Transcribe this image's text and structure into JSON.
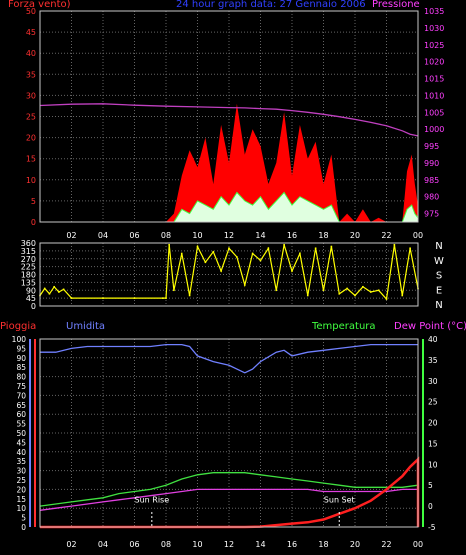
{
  "header": {
    "left_label": "Forza vento)",
    "title": "24 hour graph data:  27 Gennaio 2006",
    "right_label": "Pressione"
  },
  "lower_header": {
    "rain_label": "Pioggia",
    "humidity_label": "Umidita",
    "temp_label": "Temperatura",
    "dew_label": "Dew Point (°C)"
  },
  "annotations": {
    "sun_rise": "Sun Rise",
    "sun_set": "Sun Set"
  },
  "colors": {
    "wind_gust": "#ff0000",
    "wind_avg": "#40ff40",
    "wind_extra": "#e0ffe0",
    "pressure": "#c040c0",
    "direction": "#ffff00",
    "humidity": "#7080ff",
    "temperature": "#40e040",
    "dew_point": "#e040e0",
    "rain": "#ff2020",
    "grid": "#646464",
    "axis_wind": "#ff3030",
    "axis_pressure": "#ff40ff",
    "axis_direction": "#ffffff",
    "axis_rain": "#ff3030",
    "axis_humidity": "#7080ff",
    "axis_temp": "#40ff40"
  },
  "chart_data": [
    {
      "type": "line",
      "title": "24 hour graph data:  27 Gennaio 2006",
      "x_ticks": [
        "02",
        "04",
        "06",
        "08",
        "10",
        "12",
        "14",
        "16",
        "18",
        "20",
        "22",
        "00"
      ],
      "y_left": {
        "label": "Forza vento)",
        "ticks": [
          0,
          5,
          10,
          15,
          20,
          25,
          30,
          35,
          40,
          45,
          50
        ],
        "range": [
          0,
          50
        ]
      },
      "y_right": {
        "label": "Pressione",
        "ticks": [
          975,
          980,
          985,
          990,
          995,
          1000,
          1005,
          1010,
          1015,
          1020,
          1025,
          1030,
          1035
        ],
        "range": [
          972.5,
          1035
        ]
      },
      "grid": true,
      "pressure": {
        "x": [
          0,
          2,
          4,
          6,
          8,
          10,
          12,
          13,
          14,
          15,
          16,
          17,
          18,
          19,
          20,
          21,
          22,
          23,
          23.5,
          24
        ],
        "y": [
          1007,
          1007.4,
          1007.5,
          1007.1,
          1006.8,
          1006.6,
          1006.4,
          1006.3,
          1006.1,
          1005.9,
          1005.5,
          1005,
          1004.4,
          1003.7,
          1002.9,
          1002,
          1001,
          999.5,
          998.5,
          998
        ]
      },
      "wind_gust": {
        "x": [
          0,
          8,
          8.5,
          9,
          9.5,
          10,
          10.5,
          11,
          11.5,
          12,
          12.5,
          13,
          13.5,
          14,
          14.5,
          15,
          15.5,
          16,
          16.5,
          17,
          17.5,
          18,
          18.5,
          19,
          19.5,
          20,
          20.5,
          21,
          21.5,
          22,
          22.5,
          23,
          23.3,
          23.6,
          23.8,
          24
        ],
        "y": [
          0,
          0,
          2,
          11,
          17,
          13,
          20,
          9,
          23,
          14,
          28,
          16,
          22,
          18,
          9,
          14,
          26,
          11,
          23,
          15,
          19,
          9,
          16,
          0,
          2,
          0,
          3,
          0,
          1,
          0,
          0,
          0,
          12,
          16,
          9,
          4
        ]
      },
      "wind_avg": {
        "x": [
          0,
          8,
          8.5,
          9,
          9.5,
          10,
          10.5,
          11,
          11.5,
          12,
          12.5,
          13,
          13.5,
          14,
          14.5,
          15,
          15.5,
          16,
          16.5,
          17,
          17.5,
          18,
          18.5,
          19,
          20,
          21,
          22,
          23,
          23.3,
          23.6,
          23.8,
          24
        ],
        "y": [
          0,
          0,
          0,
          3,
          2,
          5,
          4,
          3,
          6,
          4,
          7,
          5,
          4,
          6,
          3,
          5,
          7,
          4,
          6,
          5,
          4,
          3,
          4,
          0,
          0,
          0,
          0,
          0,
          3,
          4,
          2,
          1
        ]
      }
    },
    {
      "type": "scatter",
      "title": "",
      "x_ticks": [],
      "y_left": {
        "ticks": [
          0,
          45,
          90,
          135,
          180,
          225,
          270,
          315,
          360
        ],
        "range": [
          0,
          360
        ]
      },
      "y_right": {
        "ticks": [
          "N",
          "W",
          "S",
          "E",
          "N"
        ]
      },
      "grid": true,
      "wind_direction": {
        "x": [
          0,
          0.3,
          0.6,
          0.9,
          1.2,
          1.5,
          2,
          4,
          6,
          7.8,
          8,
          8.2,
          8.5,
          9,
          9.5,
          10,
          10.5,
          11,
          11.5,
          12,
          12.5,
          13,
          13.5,
          14,
          14.5,
          15,
          15.5,
          16,
          16.5,
          17,
          17.5,
          18,
          18.5,
          19,
          19.5,
          20,
          20.5,
          21,
          21.5,
          22,
          22.5,
          23,
          23.5,
          24
        ],
        "y": [
          60,
          100,
          70,
          110,
          80,
          95,
          45,
          45,
          45,
          45,
          45,
          350,
          90,
          300,
          60,
          340,
          250,
          310,
          200,
          330,
          280,
          120,
          300,
          260,
          330,
          90,
          350,
          200,
          300,
          60,
          330,
          90,
          340,
          70,
          100,
          60,
          110,
          80,
          90,
          40,
          350,
          60,
          330,
          100
        ]
      }
    },
    {
      "type": "line",
      "title": "",
      "x_ticks": [
        "02",
        "04",
        "06",
        "08",
        "10",
        "12",
        "14",
        "16",
        "18",
        "20",
        "22",
        "00"
      ],
      "y_left": {
        "label": "Pioggia",
        "ticks": [
          0,
          5,
          10,
          15,
          20,
          25,
          30,
          35,
          40,
          45,
          50,
          55,
          60,
          65,
          70,
          75,
          80,
          85,
          90,
          95,
          100
        ],
        "range": [
          0,
          100
        ]
      },
      "y_right": {
        "label": "Dew Point (°C)",
        "ticks": [
          -5,
          0,
          5,
          10,
          15,
          20,
          25,
          30,
          35,
          40
        ],
        "range": [
          -5,
          40
        ]
      },
      "grid": true,
      "humidity": {
        "x": [
          0,
          1,
          2,
          3,
          4,
          5,
          6,
          7,
          8,
          9,
          9.5,
          10,
          11,
          12,
          12.5,
          13,
          13.5,
          14,
          15,
          15.5,
          16,
          17,
          18,
          19,
          20,
          21,
          22,
          23,
          24
        ],
        "y": [
          93,
          93,
          95,
          96,
          96,
          96,
          96,
          96,
          97,
          97,
          96,
          91,
          88,
          86,
          84,
          82,
          84,
          88,
          93,
          94,
          91,
          93,
          94,
          95,
          96,
          97,
          97,
          97,
          97
        ]
      },
      "temperature": {
        "x": [
          0,
          1,
          2,
          3,
          4,
          5,
          6,
          7,
          8,
          9,
          10,
          11,
          12,
          13,
          14,
          15,
          16,
          17,
          18,
          19,
          20,
          21,
          22,
          23,
          24
        ],
        "y": [
          0,
          0.5,
          1,
          1.5,
          2,
          3,
          3.5,
          4,
          5,
          6.5,
          7.5,
          8,
          8,
          8,
          7.5,
          7,
          6.5,
          6,
          5.5,
          5,
          4.5,
          4.5,
          4.5,
          4.5,
          5
        ]
      },
      "dew_point": {
        "x": [
          0,
          1,
          2,
          3,
          4,
          5,
          6,
          7,
          8,
          9,
          10,
          11,
          12,
          13,
          14,
          15,
          16,
          17,
          18,
          19,
          20,
          21,
          22,
          23,
          24
        ],
        "y": [
          -1,
          -0.5,
          0,
          0.5,
          1,
          1.5,
          2,
          2.5,
          3,
          3.5,
          4,
          4,
          4,
          4,
          4,
          4,
          4,
          4,
          3.5,
          3.5,
          3.5,
          3.5,
          3.5,
          4,
          4
        ]
      },
      "rain": {
        "x": [
          0,
          13,
          14,
          15,
          16,
          17,
          18,
          19,
          20,
          21,
          22,
          23,
          23.5,
          24,
          24
        ],
        "y": [
          0,
          0,
          0.2,
          1,
          1.8,
          2.5,
          4,
          7,
          10,
          14,
          20,
          27,
          32,
          36,
          0
        ]
      },
      "sun_rise_x": 7.1,
      "sun_set_x": 19.0
    }
  ]
}
